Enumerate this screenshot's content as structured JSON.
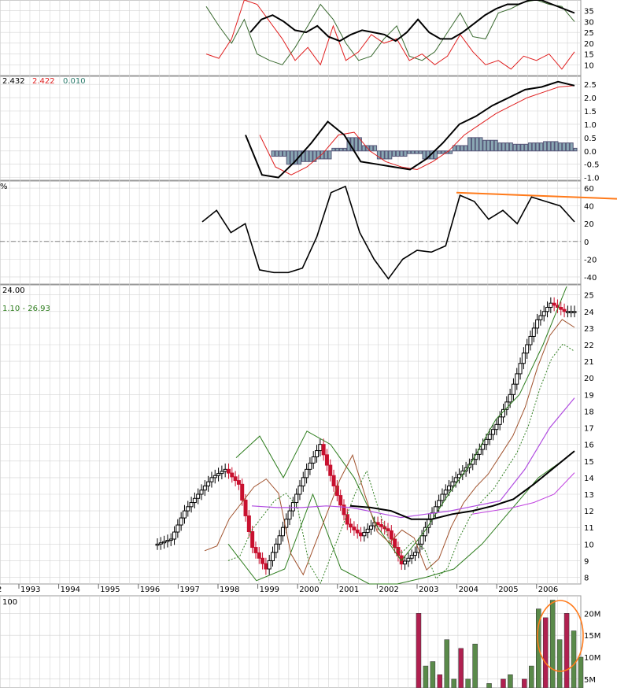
{
  "header_labels": {
    "macd_prefix": "2.432",
    "macd_signal": "2.422",
    "macd_hist": "0.010",
    "roc_pct_sign": "%",
    "price_last": "24.00",
    "bb_range": "1.10 - 26.93",
    "volume_label": "100"
  },
  "colors": {
    "grid": "#d4d4d4",
    "up_candle": "#000000",
    "down_candle": "#c8102e",
    "bb": "#2e7d1e",
    "ma_brown": "#a0522d",
    "ma_dotted": "#2e7d1e",
    "ma_purple": "#b04ce0",
    "ma_black": "#000000",
    "ma_magenta": "#c040e0",
    "vol_up": "#5a8a4a",
    "vol_down": "#b02050",
    "highlight": "#ff7a1a",
    "rsi_stoch_red": "#e02020",
    "rsi_stoch_green": "#3a6a30",
    "macd_hist": "#8aa8b4"
  },
  "chart_data": [
    {
      "type": "line",
      "panel": "stochastic",
      "y_ticks": [
        "10",
        "15",
        "20",
        "25",
        "30",
        "35"
      ],
      "ylim": [
        5,
        40
      ],
      "series": [
        {
          "id": "stoch_green",
          "values": [
            37,
            28,
            20,
            31,
            15,
            12,
            10,
            18,
            28,
            38,
            31,
            20,
            12,
            14,
            22,
            28,
            14,
            12,
            16,
            25,
            34,
            23,
            22,
            34,
            36,
            39,
            40,
            38,
            37,
            30
          ]
        },
        {
          "id": "stoch_red",
          "values": [
            15,
            13,
            22,
            40,
            38,
            30,
            22,
            12,
            18,
            10,
            28,
            12,
            16,
            24,
            20,
            22,
            12,
            15,
            10,
            14,
            24,
            16,
            10,
            12,
            8,
            14,
            12,
            15,
            8,
            16
          ]
        },
        {
          "id": "stoch_black",
          "values": [
            25,
            31,
            33,
            30,
            26,
            25,
            28,
            23,
            21,
            24,
            26,
            25,
            24,
            21,
            25,
            31,
            25,
            22,
            22,
            25,
            29,
            33,
            36,
            38,
            38,
            40,
            40,
            38,
            36,
            34
          ]
        }
      ]
    },
    {
      "type": "line",
      "panel": "macd",
      "y_ticks": [
        "-1.0",
        "-0.5",
        "0.0",
        "0.5",
        "1.0",
        "1.5",
        "2.0",
        "2.5"
      ],
      "ylim": [
        -1.1,
        2.8
      ],
      "series": [
        {
          "id": "macd_line",
          "values": [
            0.6,
            -0.9,
            -1.0,
            -0.4,
            0.3,
            1.1,
            0.6,
            -0.4,
            -0.5,
            -0.6,
            -0.7,
            -0.3,
            0.3,
            1.0,
            1.3,
            1.7,
            2.0,
            2.3,
            2.4,
            2.6,
            2.45
          ]
        },
        {
          "id": "macd_signal",
          "values": [
            0.6,
            -0.6,
            -0.9,
            -0.6,
            -0.1,
            0.6,
            0.7,
            0.0,
            -0.4,
            -0.6,
            -0.7,
            -0.4,
            0.0,
            0.6,
            1.0,
            1.4,
            1.7,
            2.0,
            2.2,
            2.4,
            2.45
          ]
        },
        {
          "id": "macd_hist",
          "values": [
            -0.2,
            -0.5,
            -0.4,
            -0.3,
            0.1,
            0.5,
            0.2,
            -0.3,
            -0.2,
            -0.1,
            -0.3,
            -0.1,
            0.2,
            0.5,
            0.4,
            0.3,
            0.25,
            0.3,
            0.35,
            0.3,
            0.1
          ]
        }
      ]
    },
    {
      "type": "line",
      "panel": "momentum",
      "y_ticks": [
        "-40",
        "-20",
        "0",
        "20",
        "40",
        "60"
      ],
      "ylim": [
        -48,
        68
      ],
      "series": [
        {
          "id": "momentum",
          "values": [
            22,
            35,
            10,
            20,
            -32,
            -35,
            -35,
            -30,
            5,
            55,
            62,
            10,
            -20,
            -42,
            -20,
            -10,
            -12,
            -5,
            52,
            45,
            25,
            35,
            20,
            50,
            45,
            40,
            22
          ]
        },
        {
          "id": "trendline",
          "values": [
            55,
            48
          ]
        }
      ]
    },
    {
      "type": "bar",
      "panel": "price",
      "title": "",
      "x_tick_labels": [
        "1993",
        "1994",
        "1995",
        "1996",
        "1997",
        "1998",
        "1999",
        "2000",
        "2001",
        "2002",
        "2003",
        "2004",
        "2005",
        "2006"
      ],
      "y_ticks": [
        "8",
        "9",
        "10",
        "11",
        "12",
        "13",
        "14",
        "15",
        "16",
        "17",
        "18",
        "19",
        "20",
        "21",
        "22",
        "23",
        "24",
        "25"
      ],
      "ylim": [
        7.6,
        25.6
      ],
      "candles_close": [
        10,
        10.3,
        12,
        13,
        14,
        14.5,
        13.6,
        9.8,
        8.5,
        10.5,
        12.5,
        14.5,
        16,
        13.5,
        11.2,
        10.5,
        11.3,
        10.8,
        8.8,
        9.5,
        11.5,
        13,
        14,
        14.8,
        16,
        17.2,
        19,
        21.5,
        23.5,
        24.5,
        24
      ],
      "series": [
        {
          "id": "bb_upper",
          "values": [
            15.2,
            16.5,
            14,
            16.8,
            16,
            14,
            11,
            9,
            10.8,
            13,
            15,
            17.5,
            19,
            22,
            25.5
          ]
        },
        {
          "id": "bb_lower",
          "values": [
            10,
            7.8,
            8.5,
            13,
            8.5,
            7.6,
            7.6,
            8,
            8.5,
            10,
            12,
            14,
            15.2
          ]
        },
        {
          "id": "ma_purple",
          "values": [
            12.3,
            12.2,
            12.2,
            12.3,
            12.2,
            11.9,
            11.6,
            11.8,
            12,
            12.3,
            12.6,
            14.5,
            17,
            18.8
          ]
        },
        {
          "id": "ma_black",
          "values": [
            12.3,
            12.2,
            12,
            11.5,
            11.5,
            11.8,
            12,
            12.3,
            12.7,
            13.6,
            14.6,
            15.6
          ]
        },
        {
          "id": "ma_magenta",
          "values": [
            11.8,
            12,
            12.2,
            12.5,
            13,
            14.3
          ]
        }
      ]
    },
    {
      "type": "bar",
      "panel": "volume",
      "y_ticks": [
        "5M",
        "10M",
        "15M",
        "20M"
      ],
      "ylim": [
        3,
        24
      ],
      "values": [
        3,
        20,
        8,
        9,
        6,
        14,
        5,
        12,
        5,
        13,
        3,
        4,
        3,
        5,
        6,
        3,
        5,
        8,
        21,
        19,
        23,
        14,
        20,
        16,
        10
      ]
    }
  ]
}
